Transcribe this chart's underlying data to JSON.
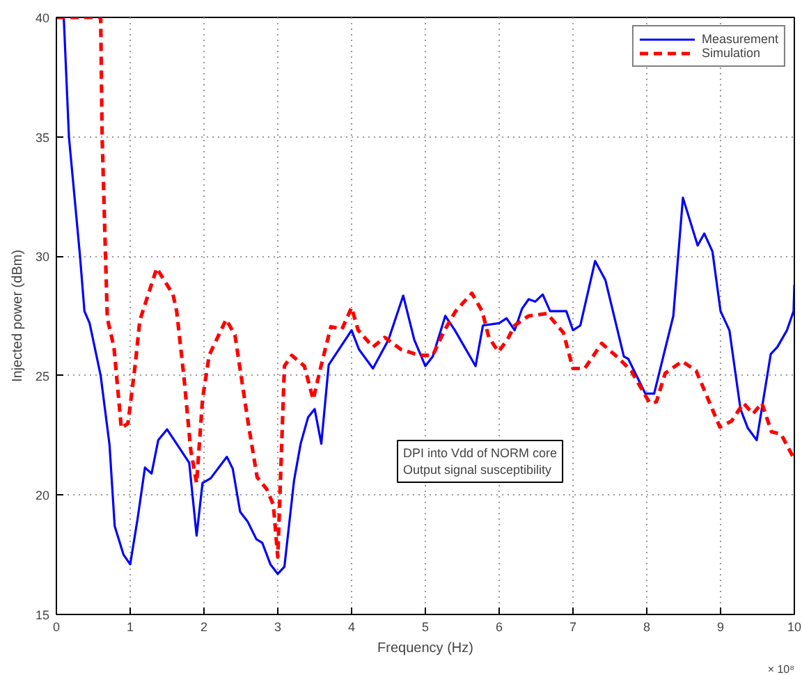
{
  "chart_data": {
    "type": "line",
    "xlabel": "Frequency (Hz)",
    "ylabel": "Injected power (dBm)",
    "xlim": [
      0,
      10
    ],
    "ylim": [
      15,
      40
    ],
    "xticks": [
      0,
      1,
      2,
      3,
      4,
      5,
      6,
      7,
      8,
      9,
      10
    ],
    "yticks": [
      15,
      20,
      25,
      30,
      35,
      40
    ],
    "grid": true,
    "legend": "top right",
    "marker": "none",
    "annotations": [
      "DPI into Vdd of NORM core\nOutput signal susceptibility",
      "× 10⁸"
    ],
    "series": [
      {
        "name": "Measurement",
        "color": "#0000ff",
        "line_style": "solid",
        "x": [
          0.1,
          0.17,
          0.32,
          0.38,
          0.45,
          0.6,
          0.72,
          0.79,
          0.91,
          1.0,
          1.1,
          1.2,
          1.29,
          1.38,
          1.5,
          1.8,
          1.9,
          1.98,
          2.09,
          2.31,
          2.39,
          2.49,
          2.59,
          2.71,
          2.79,
          2.9,
          3.0,
          3.09,
          3.22,
          3.31,
          3.41,
          3.5,
          3.59,
          3.69,
          4.0,
          4.1,
          4.29,
          4.5,
          4.7,
          4.85,
          5.0,
          5.1,
          5.27,
          5.4,
          5.68,
          5.78,
          6.0,
          6.1,
          6.21,
          6.31,
          6.4,
          6.49,
          6.59,
          6.69,
          6.91,
          7.0,
          7.1,
          7.3,
          7.44,
          7.69,
          7.75,
          7.98,
          8.1,
          8.36,
          8.49,
          8.69,
          8.78,
          8.89,
          9.0,
          9.12,
          9.27,
          9.37,
          9.49,
          9.68,
          9.77,
          9.9,
          9.99,
          10.0
        ],
        "values": [
          40,
          35,
          30,
          27.7,
          27.2,
          25,
          22.1,
          18.7,
          17.5,
          17.1,
          19,
          21.15,
          20.9,
          22.3,
          22.75,
          21.35,
          18.3,
          20.5,
          20.7,
          21.6,
          21.1,
          19.3,
          18.9,
          18.15,
          18.0,
          17.1,
          16.7,
          17.0,
          20.6,
          22.15,
          23.25,
          23.6,
          22.15,
          25.45,
          26.9,
          26.1,
          25.3,
          26.5,
          28.35,
          26.5,
          25.4,
          25.8,
          27.5,
          26.9,
          25.4,
          27.1,
          27.2,
          27.4,
          26.9,
          27.8,
          28.2,
          28.1,
          28.4,
          27.7,
          27.7,
          26.9,
          27.1,
          29.8,
          29.0,
          25.8,
          25.7,
          24.25,
          24.25,
          27.5,
          32.45,
          30.45,
          30.95,
          30.2,
          27.7,
          26.9,
          23.6,
          22.8,
          22.3,
          25.9,
          26.2,
          26.9,
          27.7,
          28.8
        ]
      },
      {
        "name": "Simulation",
        "color": "#ff0000",
        "line_style": "dashed",
        "x": [
          0.0,
          0.13,
          0.3,
          0.45,
          0.6,
          0.62,
          0.69,
          0.78,
          0.88,
          0.97,
          1.07,
          1.13,
          1.36,
          1.58,
          1.63,
          1.73,
          1.82,
          1.9,
          1.98,
          2.07,
          2.3,
          2.42,
          2.6,
          2.72,
          2.85,
          2.94,
          3.0,
          3.09,
          3.19,
          3.36,
          3.48,
          3.59,
          3.72,
          3.87,
          4.0,
          4.09,
          4.29,
          4.45,
          4.67,
          4.92,
          5.1,
          5.26,
          5.41,
          5.63,
          5.77,
          5.86,
          5.99,
          6.11,
          6.21,
          6.4,
          6.65,
          6.87,
          7.0,
          7.16,
          7.39,
          7.63,
          7.79,
          8.04,
          8.13,
          8.25,
          8.48,
          8.67,
          8.99,
          9.15,
          9.31,
          9.44,
          9.56,
          9.69,
          9.82,
          10.0
        ],
        "values": [
          40,
          40,
          40,
          40,
          40,
          35,
          27.4,
          26.2,
          22.8,
          23.0,
          25.5,
          27.3,
          29.5,
          28.4,
          27.7,
          24.9,
          21.9,
          20.5,
          24.0,
          25.85,
          27.35,
          26.7,
          23.0,
          20.75,
          20.25,
          19.6,
          17.4,
          25.4,
          25.85,
          25.4,
          24.0,
          25.45,
          27.05,
          26.95,
          27.85,
          26.9,
          26.2,
          26.6,
          26.1,
          25.85,
          25.85,
          26.9,
          27.7,
          28.45,
          27.7,
          26.6,
          26.0,
          26.5,
          27.1,
          27.5,
          27.6,
          26.8,
          25.3,
          25.3,
          26.35,
          25.7,
          25.2,
          23.85,
          23.9,
          25.1,
          25.6,
          25.2,
          22.85,
          23.1,
          23.85,
          23.4,
          23.85,
          22.65,
          22.55,
          21.5
        ]
      }
    ]
  }
}
